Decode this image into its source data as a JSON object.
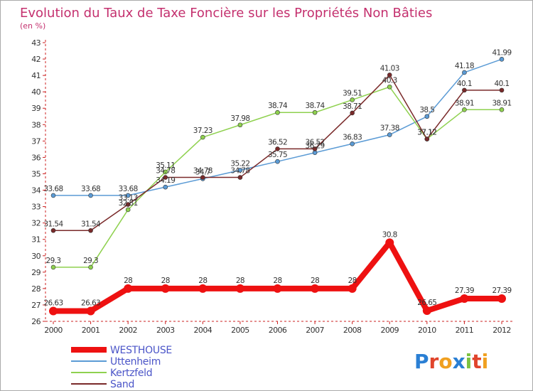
{
  "chart_data": {
    "type": "line",
    "title": "Evolution du Taux de Taxe Foncière sur les Propriétés Non Bâties",
    "subtitle": "(en %)",
    "xlabel": "",
    "ylabel": "(en %)",
    "x": [
      "2000",
      "2001",
      "2002",
      "2003",
      "2004",
      "2005",
      "2006",
      "2007",
      "2008",
      "2009",
      "2010",
      "2011",
      "2012"
    ],
    "ylim": [
      26,
      43
    ],
    "yticks": [
      "26",
      "27",
      "28",
      "29",
      "30",
      "31",
      "32",
      "33",
      "34",
      "35",
      "36",
      "37",
      "38",
      "39",
      "40",
      "41",
      "42",
      "43"
    ],
    "grid": false,
    "legend_position": "bottom-left",
    "series": [
      {
        "name": "Uttenheim",
        "color": "#5b9bd5",
        "values": [
          33.68,
          33.68,
          33.68,
          34.19,
          34.7,
          35.22,
          35.75,
          36.29,
          36.83,
          37.38,
          38.5,
          41.18,
          41.99
        ],
        "labels": [
          "33.68",
          "33.68",
          "33.68",
          "34.19",
          "34.7",
          "35.22",
          "35.75",
          "36.29",
          "36.83",
          "37.38",
          "38.5",
          "41.18",
          "41.99"
        ]
      },
      {
        "name": "Kertzfeld",
        "color": "#8fd14f",
        "values": [
          29.3,
          29.3,
          32.81,
          35.11,
          37.23,
          37.98,
          38.74,
          38.74,
          39.51,
          40.3,
          37.12,
          38.91,
          38.91
        ],
        "labels": [
          "29.3",
          "29.3",
          "32.81",
          "35.11",
          "37.23",
          "37.98",
          "38.74",
          "38.74",
          "39.51",
          "40.3",
          "37.12",
          "38.91",
          "38.91"
        ]
      },
      {
        "name": "Sand",
        "color": "#7a2a2a",
        "values": [
          31.54,
          31.54,
          33.13,
          34.78,
          34.78,
          34.78,
          36.52,
          36.52,
          38.71,
          41.03,
          37.12,
          40.1,
          40.1
        ],
        "labels": [
          "31.54",
          "31.54",
          "33.13",
          "34.78",
          "34.78",
          "34.78",
          "36.52",
          "36.52",
          "38.71",
          "41.03",
          "37.12",
          "40.1",
          "40.1"
        ]
      },
      {
        "name": "WESTHOUSE",
        "color": "#ee1111",
        "values": [
          26.63,
          26.63,
          28,
          28,
          28,
          28,
          28,
          28,
          28,
          30.8,
          26.65,
          27.39,
          27.39
        ],
        "labels": [
          "26.63",
          "26.63",
          "28",
          "28",
          "28",
          "28",
          "28",
          "28",
          "28",
          "30.8",
          "26.65",
          "27.39",
          "27.39"
        ]
      }
    ],
    "legend": [
      "WESTHOUSE",
      "Uttenheim",
      "Kertzfeld",
      "Sand"
    ]
  },
  "logo": {
    "text": "Proxiti",
    "letters": [
      "P",
      "r",
      "o",
      "x",
      "i",
      "t",
      "i"
    ],
    "colors": [
      "#2a7fd4",
      "#e0442b",
      "#f0a020",
      "#2a7fd4",
      "#7cc242",
      "#e0442b",
      "#f0a020"
    ]
  },
  "colors": {
    "title": "#c4306e",
    "axis": "#cc2222",
    "border": "#aaaaaa"
  }
}
